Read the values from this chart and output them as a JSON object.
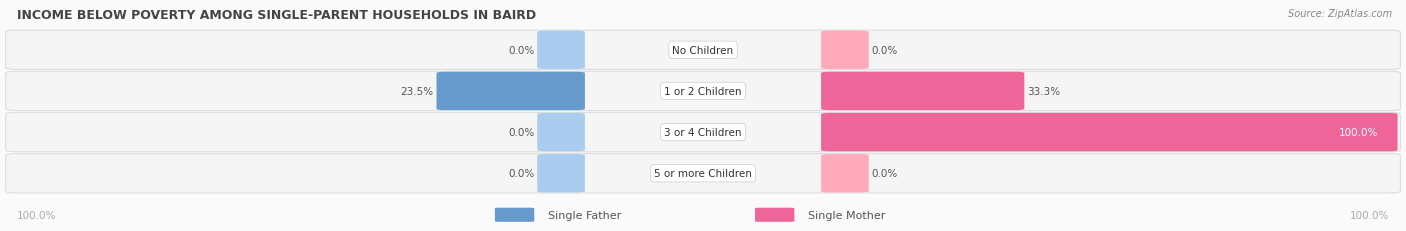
{
  "title": "INCOME BELOW POVERTY AMONG SINGLE-PARENT HOUSEHOLDS IN BAIRD",
  "source": "Source: ZipAtlas.com",
  "categories": [
    "No Children",
    "1 or 2 Children",
    "3 or 4 Children",
    "5 or more Children"
  ],
  "single_father": [
    0.0,
    23.5,
    0.0,
    0.0
  ],
  "single_mother": [
    0.0,
    33.3,
    100.0,
    0.0
  ],
  "father_color_full": "#6699CC",
  "father_color_light": "#AACCEE",
  "mother_color_full": "#EE6699",
  "mother_color_light": "#FFAABB",
  "row_bg_color": "#F5F5F5",
  "row_border_color": "#DDDDDD",
  "bg_color": "#FAFAFA",
  "title_color": "#444444",
  "label_color": "#888888",
  "value_color": "#555555",
  "axis_label_color": "#AAAAAA",
  "max_val": 100.0,
  "legend_labels": [
    "Single Father",
    "Single Mother"
  ]
}
